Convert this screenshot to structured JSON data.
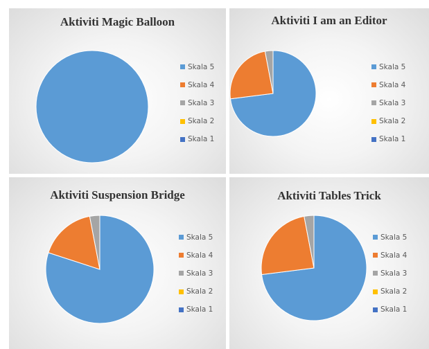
{
  "colors": {
    "Skala 5": "#5b9bd5",
    "Skala 4": "#ed7d31",
    "Skala 3": "#a5a5a5",
    "Skala 2": "#ffc000",
    "Skala 1": "#4472c4"
  },
  "chart_data": [
    {
      "type": "pie",
      "title": "Aktiviti Magic Balloon",
      "legend_position": "right",
      "categories": [
        "Skala 5",
        "Skala 4",
        "Skala 3",
        "Skala 2",
        "Skala 1"
      ],
      "values": [
        100,
        0,
        0,
        0,
        0
      ]
    },
    {
      "type": "pie",
      "title": "Aktiviti I am an Editor",
      "legend_position": "right",
      "categories": [
        "Skala 5",
        "Skala 4",
        "Skala 3",
        "Skala 2",
        "Skala 1"
      ],
      "values": [
        73,
        24,
        3,
        0,
        0
      ]
    },
    {
      "type": "pie",
      "title": "Aktiviti Suspension Bridge",
      "legend_position": "right",
      "categories": [
        "Skala 5",
        "Skala 4",
        "Skala 3",
        "Skala 2",
        "Skala 1"
      ],
      "values": [
        80,
        17,
        3,
        0,
        0
      ]
    },
    {
      "type": "pie",
      "title": "Aktiviti Tables Trick",
      "legend_position": "right",
      "categories": [
        "Skala 5",
        "Skala 4",
        "Skala 3",
        "Skala 2",
        "Skala 1"
      ],
      "values": [
        73,
        24,
        3,
        0,
        0
      ]
    }
  ]
}
